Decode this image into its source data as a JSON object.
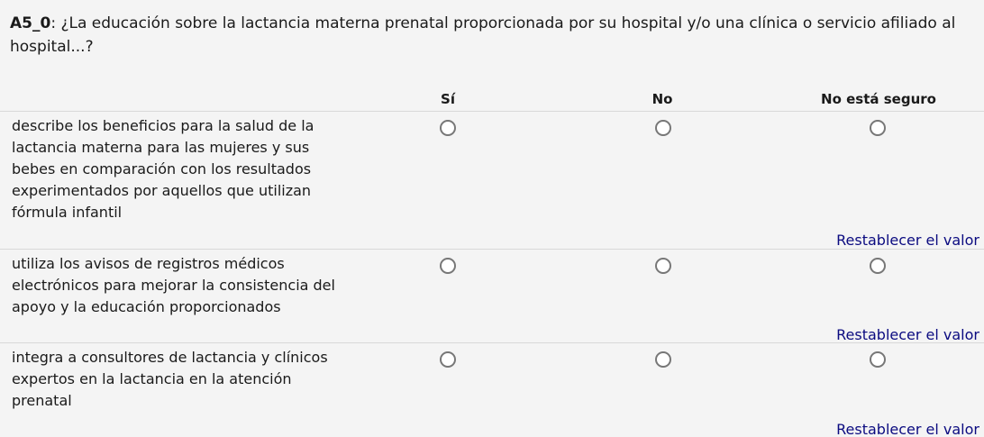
{
  "question": {
    "code": "A5_0",
    "text": ": ¿La educación sobre la lactancia materna prenatal proporcionada por su hospital y/o una clínica o servicio afiliado al hospital...?"
  },
  "columns": [
    "Sí",
    "No",
    "No está seguro"
  ],
  "rows": [
    {
      "label": "describe los beneficios para la salud de la lactancia materna para las mujeres y sus bebes en comparación con los resultados experimentados por aquellos que utilizan fórmula infantil",
      "selected": null
    },
    {
      "label": "utiliza los avisos de registros médicos electrónicos para mejorar la consistencia del apoyo y la educación proporcionados",
      "selected": null
    },
    {
      "label": "integra a consultores de lactancia y clínicos expertos en la lactancia en la atención prenatal",
      "selected": null
    }
  ],
  "reset_label": "Restablecer el valor",
  "colors": {
    "background": "#f4f4f4",
    "link": "#0b0b80"
  }
}
